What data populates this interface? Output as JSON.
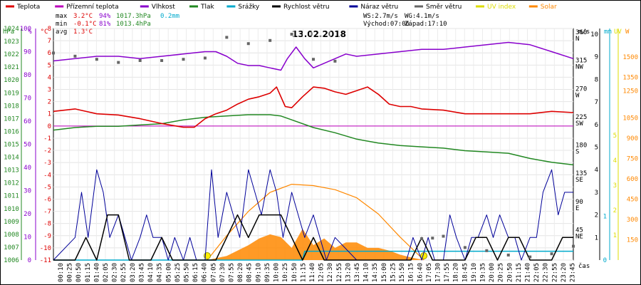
{
  "chart_data": {
    "type": "line",
    "title": "13.02.2018",
    "legend": [
      {
        "name": "Teplota",
        "color": "#dd0000"
      },
      {
        "name": "Přízemní teplota",
        "color": "#bb00bb"
      },
      {
        "name": "Vlhkost",
        "color": "#8800cc"
      },
      {
        "name": "Tlak",
        "color": "#228822"
      },
      {
        "name": "Srážky",
        "color": "#00aacc"
      },
      {
        "name": "Rychlost větru",
        "color": "#000000"
      },
      {
        "name": "Náraz větru",
        "color": "#000099"
      },
      {
        "name": "Směr větru",
        "color": "#666666"
      },
      {
        "name": "UV index",
        "color": "#dddd00"
      },
      {
        "name": "Solar",
        "color": "#ff8800"
      }
    ],
    "stats": {
      "max": {
        "label": "max",
        "temp": "3.2°C",
        "hum": "94%",
        "press": "1017.3hPa",
        "rain": "0.2mm"
      },
      "min": {
        "label": "min",
        "temp": "-0.1°C",
        "hum": "81%",
        "press": "1013.4hPa"
      },
      "avg": {
        "label": "avg",
        "temp": "1.3°C"
      }
    },
    "wind_info": {
      "ws": "WS:2.7m/s",
      "wg": "WG:4.1m/s",
      "sunrise": "Východ:07:06",
      "sunset": "Západ:17:10"
    },
    "axes": {
      "hpa": {
        "unit": "hPa",
        "min": 1006,
        "max": 1024,
        "ticks": [
          "1024",
          "1023",
          "1022",
          "1021",
          "1020",
          "1019",
          "1018",
          "1017",
          "1016",
          "1015",
          "1014",
          "1013",
          "1012",
          "1011",
          "1010",
          "1009",
          "1008",
          "1007",
          "1006"
        ]
      },
      "pct": {
        "unit": "%",
        "ticks": [
          "100",
          "90",
          "80",
          "70",
          "60",
          "50",
          "40",
          "30",
          "20",
          "10",
          "0"
        ]
      },
      "temp": {
        "unit": "°C",
        "min": -11,
        "max": 8,
        "ticks": [
          "8",
          "7",
          "6",
          "5",
          "4",
          "3",
          "2",
          "1",
          "0",
          "-1",
          "-2",
          "-3",
          "-4",
          "-5",
          "-6",
          "-7",
          "-8",
          "-9",
          "-10",
          "-11"
        ]
      },
      "dir": {
        "ticks": [
          [
            "360",
            "N"
          ],
          [
            "315",
            "NW"
          ],
          [
            "270",
            "W"
          ],
          [
            "225",
            "SW"
          ],
          [
            "180",
            "S"
          ],
          [
            "135",
            "SE"
          ],
          [
            "90",
            "E"
          ],
          [
            "45",
            "NE"
          ]
        ]
      },
      "ms": {
        "unit": "m/s",
        "ticks": [
          "10",
          "9",
          "8",
          "7",
          "6",
          "5",
          "4",
          "3",
          "2",
          "1"
        ]
      },
      "mm": {
        "unit": "mm",
        "ticks": [
          "1",
          "0"
        ]
      },
      "uv": {
        "unit": "UV",
        "ticks": [
          "5",
          "4",
          "3",
          "2",
          "1"
        ]
      },
      "w": {
        "unit": "W",
        "ticks": [
          "1500",
          "1350",
          "1250",
          "1050",
          "900",
          "750",
          "600",
          "450",
          "300",
          "150"
        ]
      },
      "xlabel": "čas",
      "x_ticks": [
        "00:10",
        "00:25",
        "00:50",
        "01:15",
        "01:40",
        "02:05",
        "02:30",
        "02:55",
        "03:20",
        "03:45",
        "04:10",
        "04:35",
        "05:00",
        "05:25",
        "05:50",
        "06:15",
        "06:40",
        "07:05",
        "07:30",
        "07:55",
        "08:20",
        "08:45",
        "09:10",
        "09:35",
        "10:00",
        "10:25",
        "10:50",
        "11:15",
        "11:40",
        "12:05",
        "12:30",
        "12:55",
        "13:20",
        "13:45",
        "14:10",
        "14:35",
        "15:00",
        "15:25",
        "15:50",
        "16:15",
        "16:40",
        "17:05",
        "17:30",
        "17:55",
        "18:20",
        "18:45",
        "19:10",
        "19:35",
        "20:00",
        "20:25",
        "20:50",
        "21:15",
        "21:40",
        "22:05",
        "22:30",
        "22:55",
        "23:20",
        "23:45"
      ]
    },
    "series": {
      "temperature_C": {
        "x_hours": [
          0,
          1,
          2,
          3,
          4,
          5,
          6,
          6.5,
          7,
          7.5,
          8,
          8.5,
          9,
          9.5,
          10,
          10.3,
          10.7,
          11,
          11.5,
          12,
          12.5,
          13,
          13.5,
          14,
          14.5,
          15,
          15.5,
          16,
          16.5,
          17,
          18,
          19,
          20,
          21,
          22,
          23,
          24
        ],
        "values": [
          1.2,
          1.4,
          1.0,
          0.9,
          0.6,
          0.2,
          -0.1,
          -0.1,
          0.6,
          1.0,
          1.3,
          1.8,
          2.2,
          2.4,
          2.7,
          3.2,
          1.6,
          1.5,
          2.4,
          3.2,
          3.1,
          2.8,
          2.6,
          2.9,
          3.2,
          2.6,
          1.8,
          1.6,
          1.6,
          1.4,
          1.3,
          1.0,
          1.0,
          1.0,
          1.0,
          1.2,
          1.1
        ]
      },
      "ground_temp_C": {
        "x_hours": [
          0,
          24
        ],
        "values": [
          0,
          0
        ]
      },
      "humidity_pct": {
        "x_hours": [
          0,
          1,
          2,
          3,
          4,
          5,
          6,
          7,
          7.5,
          8,
          8.5,
          9,
          9.5,
          10,
          10.5,
          10.8,
          11.2,
          11.6,
          12,
          12.5,
          13,
          13.5,
          14,
          15,
          16,
          17,
          18,
          19,
          20,
          21,
          22,
          23,
          24
        ],
        "values": [
          86,
          87,
          88,
          88,
          87,
          88,
          89,
          90,
          90,
          88,
          85,
          84,
          84,
          83,
          82,
          87,
          92,
          87,
          83,
          85,
          87,
          89,
          88,
          89,
          90,
          91,
          91,
          92,
          93,
          94,
          93,
          90,
          87
        ]
      },
      "pressure_hPa": {
        "x_hours": [
          0,
          1,
          2,
          3,
          4,
          5,
          6,
          7,
          8,
          9,
          10,
          10.5,
          11,
          12,
          13,
          14,
          15,
          16,
          17,
          18,
          19,
          20,
          21,
          22,
          23,
          24
        ],
        "values": [
          1016.1,
          1016.3,
          1016.4,
          1016.4,
          1016.5,
          1016.6,
          1016.9,
          1017.1,
          1017.2,
          1017.3,
          1017.3,
          1017.2,
          1016.9,
          1016.3,
          1015.9,
          1015.4,
          1015.1,
          1014.9,
          1014.8,
          1014.7,
          1014.5,
          1014.4,
          1014.3,
          1013.9,
          1013.6,
          1013.4
        ]
      },
      "rain_mm": {
        "x_hours": [
          0,
          11.5,
          11.6,
          24
        ],
        "values": [
          0,
          0,
          0.2,
          0.2
        ]
      },
      "wind_speed_ms": {
        "x_hours": [
          0,
          1,
          1.5,
          2,
          2.5,
          3,
          3.5,
          4,
          4.5,
          5,
          5.5,
          6,
          6.5,
          7,
          7.5,
          8,
          8.5,
          9,
          9.5,
          10,
          10.5,
          11,
          11.5,
          12,
          12.5,
          13,
          14,
          15,
          16,
          16.5,
          17,
          17.5,
          18,
          18.5,
          19,
          19.5,
          20,
          20.5,
          21,
          21.5,
          22,
          22.5,
          23,
          23.5,
          24
        ],
        "values": [
          0,
          0,
          1,
          0,
          2,
          2,
          0,
          0,
          0,
          1,
          0,
          0,
          0,
          0,
          0,
          1,
          2,
          1,
          2,
          2,
          2,
          1,
          0,
          1,
          0,
          0,
          0,
          0,
          0,
          0,
          1,
          0,
          0,
          0,
          0,
          1,
          1,
          0,
          1,
          1,
          0,
          0,
          0,
          1,
          1
        ]
      },
      "wind_gust_ms": {
        "x_hours": [
          0,
          1,
          1.3,
          1.6,
          2,
          2.3,
          2.6,
          3,
          3.3,
          3.6,
          4,
          4.3,
          4.6,
          5,
          5.3,
          5.6,
          6,
          6.3,
          6.6,
          7,
          7.3,
          7.6,
          8,
          8.3,
          8.6,
          9,
          9.3,
          9.6,
          10,
          10.3,
          10.6,
          11,
          11.3,
          11.6,
          12,
          12.3,
          12.6,
          13,
          14,
          15,
          16,
          16.3,
          16.6,
          17,
          17.3,
          17.6,
          18,
          18.3,
          18.6,
          19,
          19.3,
          19.6,
          20,
          20.3,
          20.6,
          21,
          21.3,
          21.6,
          22,
          22.3,
          22.6,
          23,
          23.3,
          23.6,
          24
        ],
        "values": [
          0,
          1,
          3,
          1,
          4,
          3,
          1,
          2,
          1,
          0,
          1,
          2,
          1,
          1,
          0,
          1,
          0,
          1,
          0,
          0,
          4,
          1,
          3,
          2,
          1,
          4,
          3,
          2,
          4,
          3,
          1,
          3,
          2,
          1,
          2,
          1,
          0,
          1,
          0,
          0,
          0,
          0,
          1,
          0,
          1,
          0,
          0,
          2,
          1,
          0,
          1,
          1,
          2,
          1,
          2,
          1,
          1,
          0,
          1,
          1,
          3,
          4,
          2,
          3,
          3
        ]
      },
      "wind_dir_deg": {
        "x_hours": [
          0,
          1,
          2,
          3,
          4,
          5,
          6,
          7,
          8,
          9,
          10,
          11,
          12,
          13,
          17,
          17.5,
          18,
          19,
          20,
          21,
          22,
          23,
          24
        ],
        "values": [
          330,
          325,
          320,
          315,
          318,
          318,
          320,
          322,
          355,
          345,
          350,
          360,
          320,
          317,
          34,
          35,
          38,
          20,
          15,
          8,
          5,
          10,
          22
        ]
      },
      "solar_W": {
        "x_hours": [
          7.1,
          8,
          9,
          9.5,
          10,
          10.5,
          11,
          11.5,
          12,
          12.5,
          13,
          13.5,
          14,
          14.5,
          15,
          15.5,
          16,
          16.5,
          17.1
        ],
        "values": [
          0,
          30,
          110,
          160,
          190,
          170,
          90,
          230,
          110,
          160,
          90,
          130,
          130,
          90,
          90,
          70,
          40,
          20,
          0
        ]
      },
      "solar_clear_sky_W": {
        "x_hours": [
          7.1,
          8,
          9,
          10,
          11,
          12,
          13,
          14,
          15,
          16,
          17.1
        ],
        "values": [
          0,
          180,
          360,
          500,
          560,
          550,
          520,
          460,
          340,
          170,
          0
        ]
      },
      "uv_index": {
        "x_hours": [
          7.1,
          17.1
        ],
        "values": [
          0,
          0
        ]
      }
    }
  }
}
